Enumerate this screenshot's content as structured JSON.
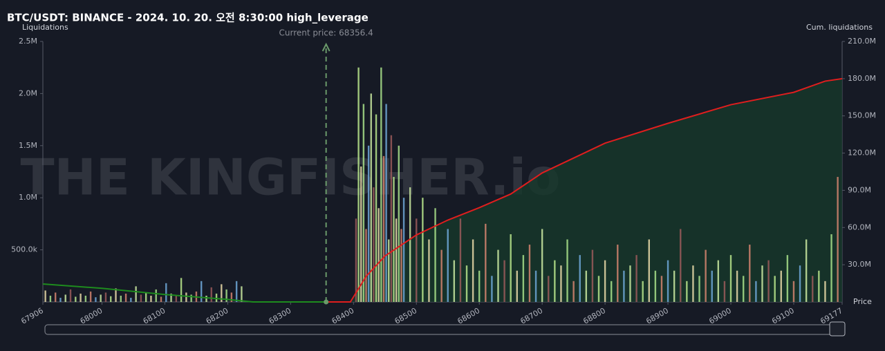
{
  "chart_data": {
    "type": "bar",
    "title": "BTC/USDT: BINANCE - 2024. 10. 20. 오전 8:30:00 high_leverage",
    "y_label": "Liquidations",
    "y2_label": "Cum. liquidations",
    "x_label": "Price",
    "watermark": "THE KINGFISHER.io",
    "current_price": {
      "value": 68356.4,
      "label": "Current price: 68356.4"
    },
    "xlim": [
      67906,
      69177
    ],
    "xticks": [
      67906,
      68000,
      68100,
      68200,
      68300,
      68400,
      68500,
      68600,
      68700,
      68800,
      68900,
      69000,
      69100,
      69177
    ],
    "ylim": [
      0,
      2500000
    ],
    "yticks": [
      {
        "value": 500000,
        "label": "500.0k"
      },
      {
        "value": 1000000,
        "label": "1.0M"
      },
      {
        "value": 1500000,
        "label": "1.5M"
      },
      {
        "value": 2000000,
        "label": "2.0M"
      },
      {
        "value": 2500000,
        "label": "2.5M"
      }
    ],
    "y2lim": [
      0,
      210000000
    ],
    "y2ticks": [
      {
        "value": 30000000,
        "label": "30.0M"
      },
      {
        "value": 60000000,
        "label": "60.0M"
      },
      {
        "value": 90000000,
        "label": "90.0M"
      },
      {
        "value": 120000000,
        "label": "120.0M"
      },
      {
        "value": 150000000,
        "label": "150.0M"
      },
      {
        "value": 180000000,
        "label": "180.0M"
      },
      {
        "value": 210000000,
        "label": "210.0M"
      }
    ],
    "bar_colors": [
      "#e8d9a8",
      "#a8e08a",
      "#d4846e",
      "#6fa8d8",
      "#c9e8a0",
      "#9a5a5a",
      "#b8e68c"
    ],
    "bars": {
      "x": [
        67910,
        67918,
        67926,
        67934,
        67942,
        67950,
        67958,
        67966,
        67974,
        67982,
        67990,
        67998,
        68006,
        68014,
        68022,
        68030,
        68038,
        68046,
        68054,
        68062,
        68070,
        68078,
        68086,
        68094,
        68102,
        68110,
        68118,
        68126,
        68134,
        68142,
        68150,
        68158,
        68166,
        68174,
        68182,
        68190,
        68198,
        68206,
        68214,
        68222,
        68404,
        68408,
        68412,
        68416,
        68420,
        68424,
        68428,
        68432,
        68436,
        68440,
        68444,
        68448,
        68452,
        68456,
        68460,
        68464,
        68468,
        68472,
        68476,
        68480,
        68490,
        68500,
        68510,
        68520,
        68530,
        68540,
        68550,
        68560,
        68570,
        68580,
        68590,
        68600,
        68610,
        68620,
        68630,
        68640,
        68650,
        68660,
        68670,
        68680,
        68690,
        68700,
        68710,
        68720,
        68730,
        68740,
        68750,
        68760,
        68770,
        68780,
        68790,
        68800,
        68810,
        68820,
        68830,
        68840,
        68850,
        68860,
        68870,
        68880,
        68890,
        68900,
        68910,
        68920,
        68930,
        68940,
        68950,
        68960,
        68970,
        68980,
        68990,
        69000,
        69010,
        69020,
        69030,
        69040,
        69050,
        69060,
        69070,
        69080,
        69090,
        69100,
        69110,
        69120,
        69130,
        69140,
        69150,
        69160,
        69170
      ],
      "values": [
        110000,
        60000,
        90000,
        40000,
        70000,
        120000,
        50000,
        80000,
        60000,
        100000,
        45000,
        70000,
        90000,
        55000,
        130000,
        60000,
        80000,
        40000,
        150000,
        70000,
        90000,
        60000,
        120000,
        50000,
        180000,
        80000,
        60000,
        230000,
        90000,
        70000,
        100000,
        200000,
        60000,
        140000,
        80000,
        170000,
        120000,
        90000,
        200000,
        150000,
        800000,
        2250000,
        1300000,
        1900000,
        700000,
        1500000,
        2000000,
        1100000,
        1800000,
        900000,
        2250000,
        1400000,
        1900000,
        600000,
        1600000,
        1200000,
        800000,
        1500000,
        700000,
        1000000,
        1100000,
        800000,
        1000000,
        600000,
        900000,
        500000,
        700000,
        400000,
        800000,
        350000,
        600000,
        300000,
        750000,
        250000,
        500000,
        400000,
        650000,
        300000,
        450000,
        550000,
        300000,
        700000,
        250000,
        400000,
        350000,
        600000,
        200000,
        450000,
        300000,
        500000,
        250000,
        400000,
        200000,
        550000,
        300000,
        350000,
        450000,
        200000,
        600000,
        300000,
        250000,
        400000,
        300000,
        700000,
        200000,
        350000,
        250000,
        500000,
        300000,
        400000,
        200000,
        450000,
        300000,
        250000,
        550000,
        200000,
        350000,
        400000,
        250000,
        300000,
        450000,
        200000,
        350000,
        600000,
        250000,
        300000,
        200000,
        650000,
        1200000
      ]
    },
    "cum_lines": [
      {
        "color": "#1e8c1e",
        "axis": "y2",
        "x": [
          67906,
          68000,
          68100,
          68200,
          68240,
          68356.4
        ],
        "values": [
          14500000,
          11000000,
          6000000,
          2000000,
          0,
          0
        ]
      },
      {
        "color": "#e01e1e",
        "axis": "y2",
        "fill": "#17382a",
        "x": [
          68356.4,
          68395,
          68420,
          68450,
          68500,
          68550,
          68600,
          68650,
          68700,
          68800,
          68900,
          69000,
          69100,
          69150,
          69177
        ],
        "values": [
          0,
          0,
          20600000,
          37000000,
          54000000,
          66000000,
          76000000,
          87000000,
          104000000,
          128000000,
          144000000,
          159000000,
          169000000,
          178000000,
          180000000
        ]
      }
    ]
  }
}
